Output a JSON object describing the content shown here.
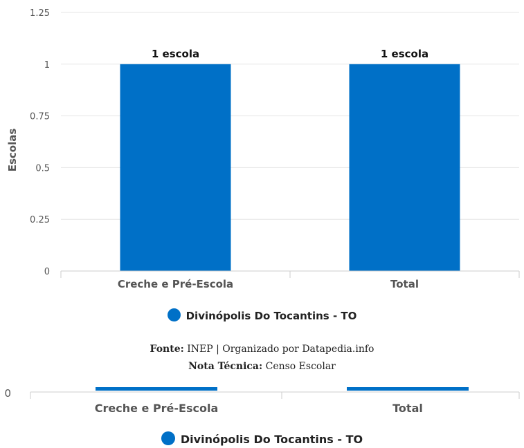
{
  "chart_data": {
    "type": "bar",
    "ylabel": "Escolas",
    "ylim": [
      0,
      1.25
    ],
    "yticks": [
      "0",
      "0.25",
      "0.5",
      "0.75",
      "1",
      "1.25"
    ],
    "categories": [
      "Creche e Pré-Escola",
      "Total"
    ],
    "series": [
      {
        "name": "Divinópolis Do Tocantins - TO",
        "values": [
          1,
          1
        ],
        "color": "#0070c7"
      }
    ],
    "data_labels": [
      "1 escola",
      "1 escola"
    ],
    "grid": true,
    "legend": "bottom-center"
  },
  "footer": {
    "source_label": "Fonte:",
    "source_text": "INEP | Organizado por Datapedia.info",
    "note_label": "Nota Técnica:",
    "note_text": "Censo Escolar"
  },
  "duplicate_strip": {
    "tick_zero": "0",
    "categories": [
      "Creche e Pré-Escola",
      "Total"
    ],
    "legend": "Divinópolis Do Tocantins - TO"
  }
}
